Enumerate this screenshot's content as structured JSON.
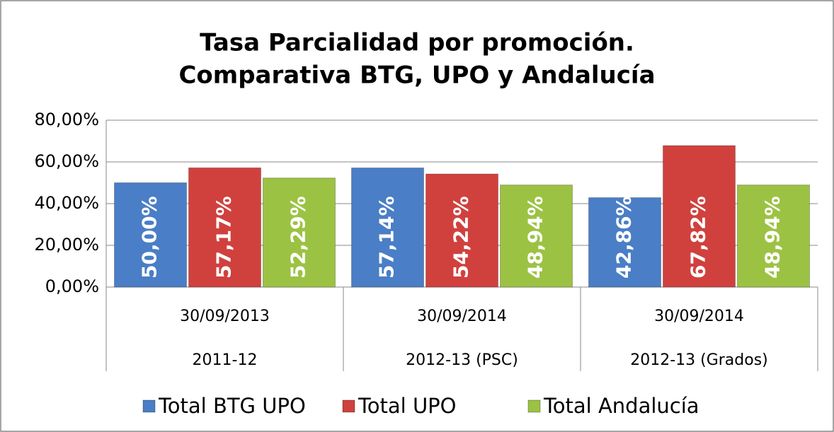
{
  "chart_data": {
    "type": "bar",
    "title": [
      "Tasa Parcialidad por promoción.",
      "Comparativa BTG, UPO y Andalucía"
    ],
    "categories": [
      "30/09/2013",
      "30/09/2014",
      "30/09/2014"
    ],
    "subcategories": [
      "2011-12",
      "2012-13 (PSC)",
      "2012-13 (Grados)"
    ],
    "series": [
      {
        "name": "Total BTG UPO",
        "color": "#4a7ec6",
        "values": [
          50,
          57.14,
          42.86
        ],
        "value_labels": [
          "50,00%",
          "57,14%",
          "42,86%"
        ]
      },
      {
        "name": "Total UPO",
        "color": "#d0413e",
        "values": [
          57.17,
          54.22,
          67.82
        ],
        "value_labels": [
          "57,17%",
          "54,22%",
          "67,82%"
        ]
      },
      {
        "name": "Total Andalucía",
        "color": "#9cc243",
        "values": [
          52.29,
          48.94,
          48.94
        ],
        "value_labels": [
          "52,29%",
          "48,94%",
          "48,94%"
        ]
      }
    ],
    "ylim": [
      0,
      80
    ],
    "yticks": [
      {
        "value": 0,
        "label": "0,00%"
      },
      {
        "value": 20,
        "label": "20,00%"
      },
      {
        "value": 40,
        "label": "40,00%"
      },
      {
        "value": 60,
        "label": "60,00%"
      },
      {
        "value": 80,
        "label": "80,00%"
      }
    ],
    "grid": true,
    "legend": "bottom"
  }
}
